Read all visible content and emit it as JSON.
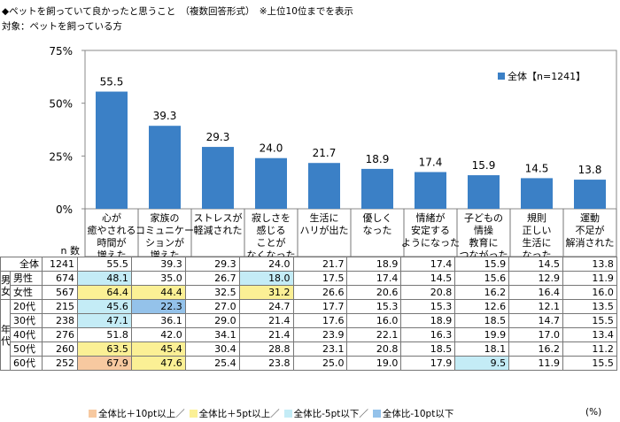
{
  "title": "◆ペットを飼っていて良かったと思うこと　（複数回答形式）　※上位10位までを表示",
  "subtitle": "対象：ペットを飼っている方",
  "colors": {
    "bar": "#3b80c6",
    "hi10": "#f7c9a0",
    "hi5": "#fbf095",
    "lo5": "#c4ecf6",
    "lo10": "#94c2ea"
  },
  "chart_data": {
    "type": "bar",
    "categories": [
      [
        "心が",
        "癒やされる",
        "時間が",
        "増えた"
      ],
      [
        "家族の",
        "コミュニケー",
        "ションが",
        "増えた"
      ],
      [
        "ストレスが",
        "軽減された"
      ],
      [
        "寂しさを",
        "感じる",
        "ことが",
        "なくなった"
      ],
      [
        "生活に",
        "ハリが出た"
      ],
      [
        "優しく",
        "なった"
      ],
      [
        "情緒が",
        "安定する",
        "ようになった"
      ],
      [
        "子どもの",
        "情操",
        "教育に",
        "つながった"
      ],
      [
        "規則",
        "正しい",
        "生活に",
        "なった"
      ],
      [
        "運動",
        "不足が",
        "解消された"
      ]
    ],
    "values": [
      55.5,
      39.3,
      29.3,
      24.0,
      21.7,
      18.9,
      17.4,
      15.9,
      14.5,
      13.8
    ],
    "value_labels": [
      "55.5",
      "39.3",
      "29.3",
      "24.0",
      "21.7",
      "18.9",
      "17.4",
      "15.9",
      "14.5",
      "13.8"
    ],
    "yticks": [
      "0%",
      "25%",
      "50%",
      "75%"
    ],
    "ytick_values": [
      0,
      25,
      50,
      75
    ],
    "ylim": [
      0,
      75
    ],
    "legend": "全体【n=1241】",
    "legend_position": "top-right"
  },
  "table": {
    "n_header": "n 数",
    "legend": [
      {
        "label": "全体比＋10pt以上／",
        "color": "#f7c9a0"
      },
      {
        "label": "全体比＋5pt以上／",
        "color": "#fbf095"
      },
      {
        "label": "全体比-5pt以下／",
        "color": "#c4ecf6"
      },
      {
        "label": "全体比-10pt以下",
        "color": "#94c2ea"
      }
    ],
    "unit": "(%)",
    "groups": [
      {
        "label": "",
        "rows": [
          {
            "label": "全体",
            "n": "1241",
            "values": [
              "55.5",
              "39.3",
              "29.3",
              "24.0",
              "21.7",
              "18.9",
              "17.4",
              "15.9",
              "14.5",
              "13.8"
            ],
            "hl": [
              "",
              "",
              "",
              "",
              "",
              "",
              "",
              "",
              "",
              ""
            ]
          }
        ]
      },
      {
        "label": "男女",
        "rows": [
          {
            "label": "男性",
            "n": "674",
            "values": [
              "48.1",
              "35.0",
              "26.7",
              "18.0",
              "17.5",
              "17.4",
              "14.5",
              "15.6",
              "12.9",
              "11.9"
            ],
            "hl": [
              "lo5",
              "",
              "",
              "lo5",
              "",
              "",
              "",
              "",
              "",
              ""
            ]
          },
          {
            "label": "女性",
            "n": "567",
            "values": [
              "64.4",
              "44.4",
              "32.5",
              "31.2",
              "26.6",
              "20.6",
              "20.8",
              "16.2",
              "16.4",
              "16.0"
            ],
            "hl": [
              "hi5",
              "hi5",
              "",
              "hi5",
              "",
              "",
              "",
              "",
              "",
              ""
            ]
          }
        ]
      },
      {
        "label": "年代",
        "rows": [
          {
            "label": "20代",
            "n": "215",
            "values": [
              "45.6",
              "22.3",
              "27.0",
              "24.7",
              "17.7",
              "15.3",
              "15.3",
              "12.6",
              "12.1",
              "13.5"
            ],
            "hl": [
              "lo5",
              "lo10",
              "",
              "",
              "",
              "",
              "",
              "",
              "",
              ""
            ]
          },
          {
            "label": "30代",
            "n": "238",
            "values": [
              "47.1",
              "36.1",
              "29.0",
              "21.4",
              "17.6",
              "16.0",
              "18.9",
              "18.5",
              "14.7",
              "15.5"
            ],
            "hl": [
              "lo5",
              "",
              "",
              "",
              "",
              "",
              "",
              "",
              "",
              ""
            ]
          },
          {
            "label": "40代",
            "n": "276",
            "values": [
              "51.8",
              "42.0",
              "34.1",
              "21.4",
              "23.9",
              "22.1",
              "16.3",
              "19.9",
              "17.0",
              "13.4"
            ],
            "hl": [
              "",
              "",
              "",
              "",
              "",
              "",
              "",
              "",
              "",
              ""
            ]
          },
          {
            "label": "50代",
            "n": "260",
            "values": [
              "63.5",
              "45.4",
              "30.4",
              "28.8",
              "23.1",
              "20.8",
              "18.5",
              "18.1",
              "16.2",
              "11.2"
            ],
            "hl": [
              "hi5",
              "hi5",
              "",
              "",
              "",
              "",
              "",
              "",
              "",
              ""
            ]
          },
          {
            "label": "60代",
            "n": "252",
            "values": [
              "67.9",
              "47.6",
              "25.4",
              "23.8",
              "25.0",
              "19.0",
              "17.9",
              "9.5",
              "11.9",
              "15.5"
            ],
            "hl": [
              "hi10",
              "hi5",
              "",
              "",
              "",
              "",
              "",
              "lo5",
              "",
              ""
            ]
          }
        ]
      }
    ]
  }
}
